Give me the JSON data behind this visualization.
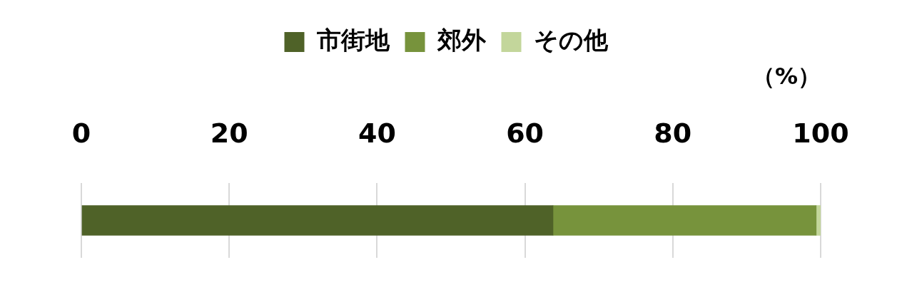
{
  "chart_data": {
    "type": "bar",
    "orientation": "horizontal",
    "stacked": true,
    "xlabel": "（%）",
    "categories": [
      null
    ],
    "series": [
      {
        "name": "市街地",
        "color": "#4f6228",
        "values": [
          63.8
        ]
      },
      {
        "name": "郊外",
        "color": "#77933c",
        "values": [
          35.6
        ]
      },
      {
        "name": "その他",
        "color": "#c3d69b",
        "values": [
          0.6
        ]
      }
    ],
    "xlim": [
      0,
      100
    ],
    "xticks": [
      0,
      20,
      40,
      60,
      80,
      100
    ],
    "grid": "x",
    "legend": "top"
  }
}
